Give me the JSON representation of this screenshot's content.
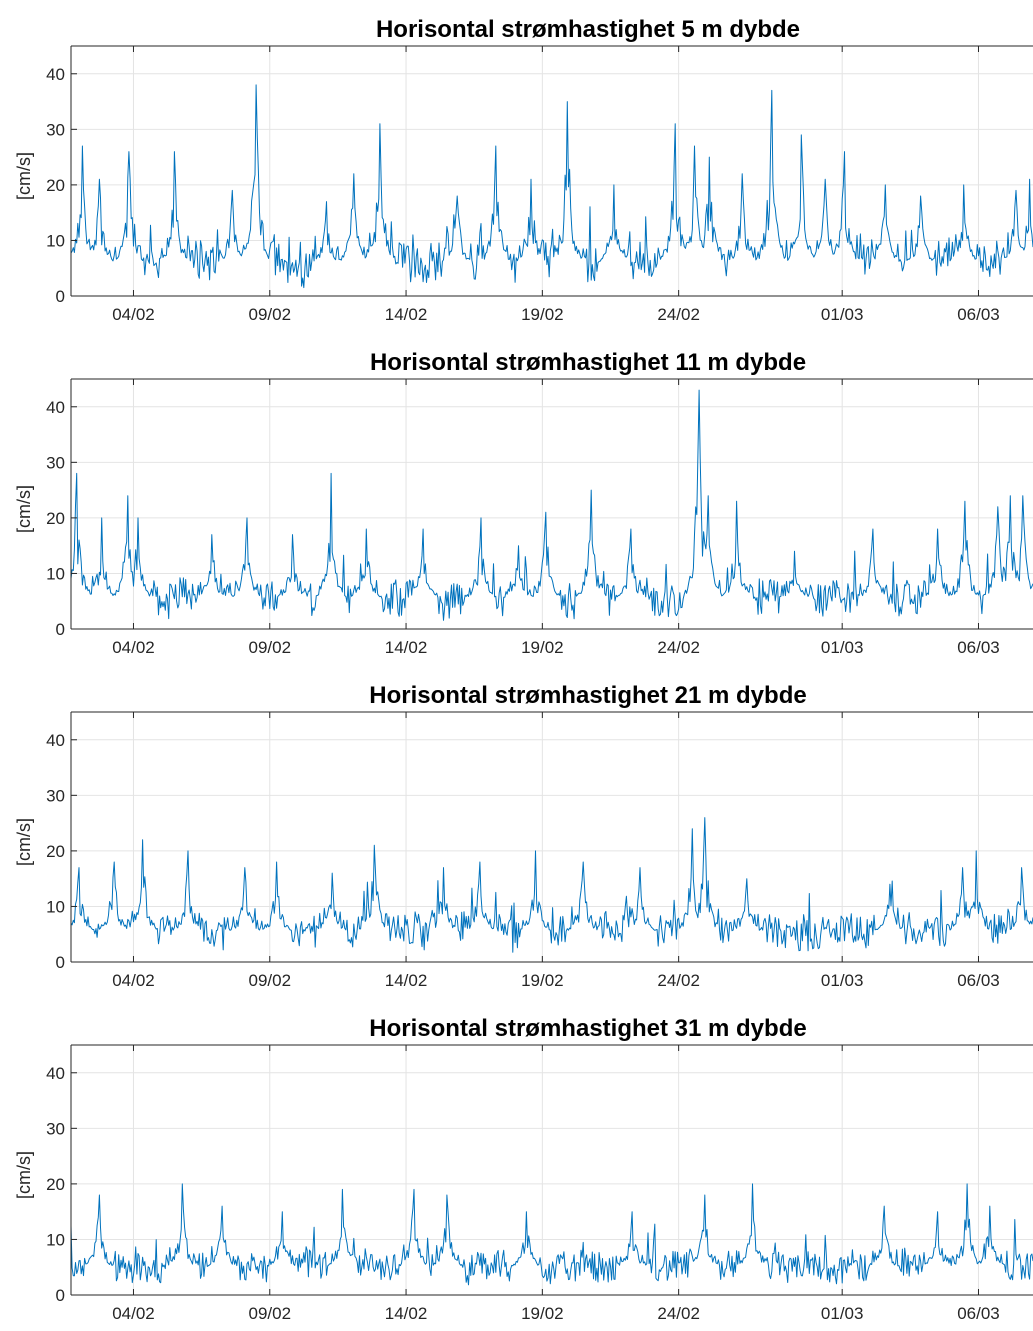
{
  "chart_data": [
    {
      "type": "line",
      "title": "Horisontal strømhastighet 5 m dybde",
      "ylabel": "[cm/s]",
      "ylim": [
        0,
        45
      ],
      "yticks": [
        0,
        10,
        20,
        30,
        40
      ],
      "xlim": [
        "2024-02-01T17:00",
        "2024-03-08T00:00"
      ],
      "xticks": [
        "04/02",
        "09/02",
        "14/02",
        "19/02",
        "24/02",
        "01/03",
        "06/03"
      ],
      "grid": true,
      "color": "#0072BD",
      "baseline": 6,
      "noise": 3.5,
      "peaks": [
        {
          "x": "2024-02-02T03:00",
          "y": 27
        },
        {
          "x": "2024-02-02T18:00",
          "y": 21
        },
        {
          "x": "2024-02-03T20:00",
          "y": 26
        },
        {
          "x": "2024-02-05T12:00",
          "y": 26
        },
        {
          "x": "2024-02-07T15:00",
          "y": 19
        },
        {
          "x": "2024-02-08T12:00",
          "y": 38
        },
        {
          "x": "2024-02-11T02:00",
          "y": 17
        },
        {
          "x": "2024-02-12T02:00",
          "y": 22
        },
        {
          "x": "2024-02-13T01:00",
          "y": 31
        },
        {
          "x": "2024-02-15T21:00",
          "y": 18
        },
        {
          "x": "2024-02-17T07:00",
          "y": 27
        },
        {
          "x": "2024-02-18T14:00",
          "y": 21
        },
        {
          "x": "2024-02-19T22:00",
          "y": 35
        },
        {
          "x": "2024-02-21T15:00",
          "y": 20
        },
        {
          "x": "2024-02-23T21:00",
          "y": 31
        },
        {
          "x": "2024-02-24T14:00",
          "y": 27
        },
        {
          "x": "2024-02-25T03:00",
          "y": 25
        },
        {
          "x": "2024-02-26T08:00",
          "y": 22
        },
        {
          "x": "2024-02-27T10:00",
          "y": 37
        },
        {
          "x": "2024-02-28T12:00",
          "y": 29
        },
        {
          "x": "2024-02-29T09:00",
          "y": 21
        },
        {
          "x": "2024-03-01T02:00",
          "y": 26
        },
        {
          "x": "2024-03-02T14:00",
          "y": 20
        },
        {
          "x": "2024-03-03T21:00",
          "y": 18
        },
        {
          "x": "2024-03-05T11:00",
          "y": 20
        },
        {
          "x": "2024-03-07T09:00",
          "y": 19
        },
        {
          "x": "2024-03-07T21:00",
          "y": 21
        }
      ]
    },
    {
      "type": "line",
      "title": "Horisontal strømhastighet 11 m dybde",
      "ylabel": "[cm/s]",
      "ylim": [
        0,
        45
      ],
      "yticks": [
        0,
        10,
        20,
        30,
        40
      ],
      "xlim": [
        "2024-02-01T17:00",
        "2024-03-08T00:00"
      ],
      "xticks": [
        "04/02",
        "09/02",
        "14/02",
        "19/02",
        "24/02",
        "01/03",
        "06/03"
      ],
      "grid": true,
      "color": "#0072BD",
      "baseline": 5.5,
      "noise": 3.2,
      "peaks": [
        {
          "x": "2024-02-01T22:00",
          "y": 28
        },
        {
          "x": "2024-02-02T20:00",
          "y": 20
        },
        {
          "x": "2024-02-03T19:00",
          "y": 24
        },
        {
          "x": "2024-02-04T04:00",
          "y": 20
        },
        {
          "x": "2024-02-06T21:00",
          "y": 17
        },
        {
          "x": "2024-02-08T04:00",
          "y": 20
        },
        {
          "x": "2024-02-09T20:00",
          "y": 17
        },
        {
          "x": "2024-02-11T06:00",
          "y": 28
        },
        {
          "x": "2024-02-12T13:00",
          "y": 18
        },
        {
          "x": "2024-02-14T15:00",
          "y": 18
        },
        {
          "x": "2024-02-16T18:00",
          "y": 20
        },
        {
          "x": "2024-02-18T03:00",
          "y": 15
        },
        {
          "x": "2024-02-19T03:00",
          "y": 21
        },
        {
          "x": "2024-02-20T19:00",
          "y": 25
        },
        {
          "x": "2024-02-22T06:00",
          "y": 18
        },
        {
          "x": "2024-02-24T18:00",
          "y": 43
        },
        {
          "x": "2024-02-25T02:00",
          "y": 24
        },
        {
          "x": "2024-02-26T03:00",
          "y": 23
        },
        {
          "x": "2024-02-28T06:00",
          "y": 14
        },
        {
          "x": "2024-03-02T03:00",
          "y": 18
        },
        {
          "x": "2024-03-04T12:00",
          "y": 18
        },
        {
          "x": "2024-03-05T12:00",
          "y": 23
        },
        {
          "x": "2024-03-06T17:00",
          "y": 22
        },
        {
          "x": "2024-03-07T04:00",
          "y": 24
        },
        {
          "x": "2024-03-07T15:00",
          "y": 24
        }
      ]
    },
    {
      "type": "line",
      "title": "Horisontal strømhastighet 21 m dybde",
      "ylabel": "[cm/s]",
      "ylim": [
        0,
        45
      ],
      "yticks": [
        0,
        10,
        20,
        30,
        40
      ],
      "xlim": [
        "2024-02-01T17:00",
        "2024-03-08T00:00"
      ],
      "xticks": [
        "04/02",
        "09/02",
        "14/02",
        "19/02",
        "24/02",
        "01/03",
        "06/03"
      ],
      "grid": true,
      "color": "#0072BD",
      "baseline": 5.5,
      "noise": 3.0,
      "peaks": [
        {
          "x": "2024-02-02T00:00",
          "y": 17
        },
        {
          "x": "2024-02-03T07:00",
          "y": 18
        },
        {
          "x": "2024-02-04T08:00",
          "y": 22
        },
        {
          "x": "2024-02-06T00:00",
          "y": 20
        },
        {
          "x": "2024-02-08T02:00",
          "y": 17
        },
        {
          "x": "2024-02-09T06:00",
          "y": 18
        },
        {
          "x": "2024-02-11T07:00",
          "y": 16
        },
        {
          "x": "2024-02-12T20:00",
          "y": 21
        },
        {
          "x": "2024-02-15T09:00",
          "y": 17
        },
        {
          "x": "2024-02-16T17:00",
          "y": 18
        },
        {
          "x": "2024-02-18T18:00",
          "y": 20
        },
        {
          "x": "2024-02-20T12:00",
          "y": 18
        },
        {
          "x": "2024-02-22T14:00",
          "y": 17
        },
        {
          "x": "2024-02-24T12:00",
          "y": 24
        },
        {
          "x": "2024-02-24T23:00",
          "y": 26
        },
        {
          "x": "2024-02-26T12:00",
          "y": 15
        },
        {
          "x": "2024-03-02T18:00",
          "y": 14
        },
        {
          "x": "2024-03-05T10:00",
          "y": 17
        },
        {
          "x": "2024-03-05T22:00",
          "y": 20
        },
        {
          "x": "2024-03-07T14:00",
          "y": 17
        }
      ]
    },
    {
      "type": "line",
      "title": "Horisontal strømhastighet 31 m dybde",
      "ylabel": "[cm/s]",
      "ylim": [
        0,
        45
      ],
      "yticks": [
        0,
        10,
        20,
        30,
        40
      ],
      "xlim": [
        "2024-02-01T17:00",
        "2024-03-08T00:00"
      ],
      "xticks": [
        "04/02",
        "09/02",
        "14/02",
        "19/02",
        "24/02",
        "01/03",
        "06/03"
      ],
      "grid": true,
      "color": "#0072BD",
      "baseline": 5,
      "noise": 2.6,
      "peaks": [
        {
          "x": "2024-02-02T18:00",
          "y": 18
        },
        {
          "x": "2024-02-05T19:00",
          "y": 20
        },
        {
          "x": "2024-02-07T06:00",
          "y": 16
        },
        {
          "x": "2024-02-09T11:00",
          "y": 15
        },
        {
          "x": "2024-02-11T16:00",
          "y": 19
        },
        {
          "x": "2024-02-14T07:00",
          "y": 19
        },
        {
          "x": "2024-02-15T12:00",
          "y": 18
        },
        {
          "x": "2024-02-18T10:00",
          "y": 15
        },
        {
          "x": "2024-02-22T07:00",
          "y": 15
        },
        {
          "x": "2024-02-24T23:00",
          "y": 18
        },
        {
          "x": "2024-02-26T17:00",
          "y": 20
        },
        {
          "x": "2024-03-02T13:00",
          "y": 16
        },
        {
          "x": "2024-03-04T12:00",
          "y": 15
        },
        {
          "x": "2024-03-05T14:00",
          "y": 20
        },
        {
          "x": "2024-03-06T10:00",
          "y": 16
        }
      ]
    }
  ]
}
